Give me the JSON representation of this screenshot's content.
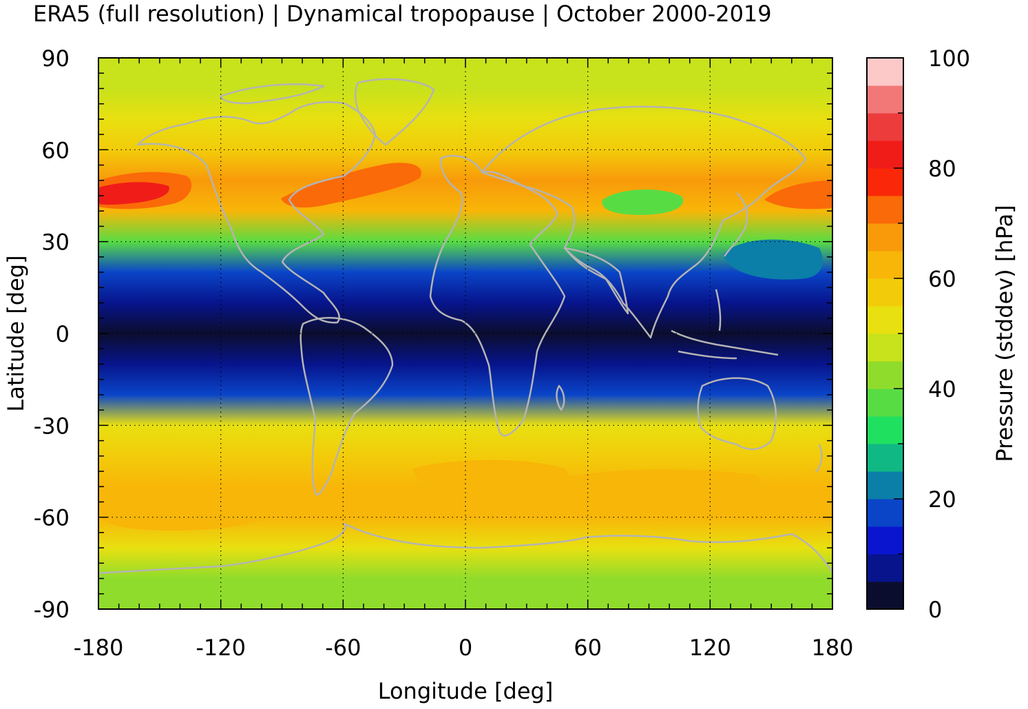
{
  "chart_data": {
    "type": "heatmap",
    "title": "ERA5 (full resolution) | Dynamical tropopause | October 2000-2019",
    "xlabel": "Longitude [deg]",
    "ylabel": "Latitude [deg]",
    "xlim": [
      -180,
      180
    ],
    "ylim": [
      -90,
      90
    ],
    "x_ticks": [
      -180,
      -120,
      -60,
      0,
      60,
      120,
      180
    ],
    "y_ticks": [
      90,
      60,
      30,
      0,
      -30,
      -60,
      -90
    ],
    "x_tick_labels": [
      "-180",
      "-120",
      "-60",
      "0",
      "60",
      "120",
      "180"
    ],
    "y_tick_labels": [
      "90",
      "60",
      "30",
      "0",
      "-30",
      "-60",
      "-90"
    ],
    "grid": true,
    "colorbar": {
      "label": "Pressure (stddev) [hPa]",
      "range": [
        0,
        100
      ],
      "ticks": [
        0,
        20,
        40,
        60,
        80,
        100
      ],
      "tick_labels": [
        "0",
        "20",
        "40",
        "60",
        "80",
        "100"
      ],
      "colors": [
        "#0b0d2e",
        "#07148c",
        "#0a15d0",
        "#0a45c8",
        "#0b7fa8",
        "#10b884",
        "#20e060",
        "#58dc44",
        "#90dc2c",
        "#c8e21c",
        "#e8e010",
        "#f2cc0a",
        "#f8b608",
        "#f89a0a",
        "#fa6a08",
        "#fa2808",
        "#f01c18",
        "#ec3c3c",
        "#f27878",
        "#fdc8c8"
      ]
    },
    "zonal_profile": {
      "latitude": [
        90,
        80,
        70,
        60,
        50,
        40,
        30,
        20,
        10,
        0,
        -10,
        -20,
        -30,
        -40,
        -50,
        -60,
        -70,
        -80,
        -90
      ],
      "value": [
        45,
        48,
        52,
        58,
        66,
        60,
        38,
        15,
        6,
        3,
        6,
        18,
        52,
        58,
        62,
        60,
        50,
        44,
        42
      ]
    }
  }
}
